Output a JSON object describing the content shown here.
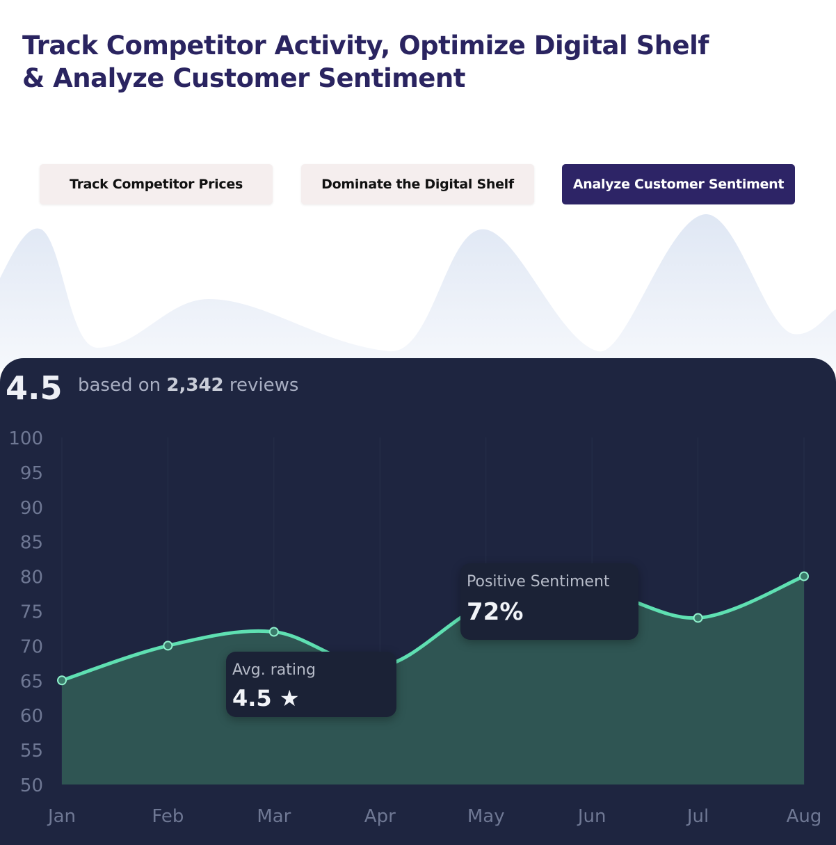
{
  "header": {
    "title_line1": "Track Competitor Activity, Optimize Digital Shelf",
    "title_line2": "& Analyze Customer Sentiment"
  },
  "tabs": [
    {
      "label": "Track Competitor Prices",
      "active": false
    },
    {
      "label": "Dominate the Digital Shelf",
      "active": false
    },
    {
      "label": "Analyze Customer Sentiment",
      "active": true
    }
  ],
  "summary": {
    "rating": "4.5",
    "prefix": "based on",
    "count": "2,342",
    "suffix": "reviews"
  },
  "tooltips": {
    "rating": {
      "label": "Avg. rating",
      "value": "4.5 ★"
    },
    "sentiment": {
      "label": "Positive Sentiment",
      "value": "72%"
    }
  },
  "colors": {
    "line": "#5fe0b2",
    "fill": "#2f5553",
    "card": "#1e2540",
    "accent": "#2d2466"
  },
  "chart_data": {
    "type": "area",
    "categories": [
      "Jan",
      "Feb",
      "Mar",
      "Apr",
      "May",
      "Jun",
      "Jul",
      "Aug"
    ],
    "series": [
      {
        "name": "Positive Sentiment",
        "values": [
          65,
          70,
          72,
          67,
          76,
          78,
          74,
          80
        ]
      }
    ],
    "ylim": [
      50,
      100
    ],
    "yticks": [
      100,
      95,
      90,
      85,
      80,
      75,
      70,
      65,
      60,
      55,
      50
    ],
    "grid": true
  }
}
